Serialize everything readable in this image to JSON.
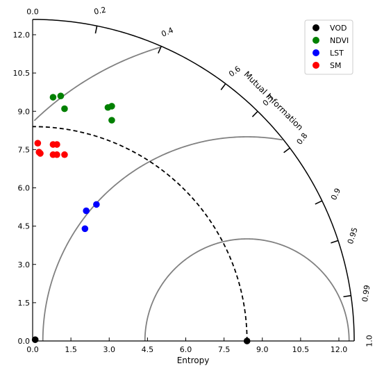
{
  "chart_data": {
    "type": "scatter",
    "subtype": "taylor-style diagram (Mutual Information)",
    "xlabel": "Entropy",
    "arc_label": "Mutual Information",
    "xlim": [
      0,
      12.6
    ],
    "ylim": [
      0,
      12.6
    ],
    "x_ticks": [
      "0.0",
      "1.5",
      "3.0",
      "4.5",
      "6.0",
      "7.5",
      "9.0",
      "10.5",
      "12.0"
    ],
    "y_ticks": [
      "0.0",
      "1.5",
      "3.0",
      "4.5",
      "6.0",
      "7.5",
      "9.0",
      "10.5",
      "12.0"
    ],
    "mi_ticks": [
      "0.0",
      "0.2",
      "0.4",
      "0.6",
      "0.7",
      "0.8",
      "0.9",
      "0.95",
      "0.99",
      "1.0"
    ],
    "reference_radius": 8.4,
    "legend_position": "top-right",
    "series": [
      {
        "name": "VOD",
        "color": "#000000",
        "x": [
          0.1,
          8.4
        ],
        "y": [
          0.05,
          0.0
        ]
      },
      {
        "name": "NDVI",
        "color": "#008000",
        "x": [
          0.8,
          1.1,
          1.25,
          2.95,
          3.1,
          3.1
        ],
        "y": [
          9.55,
          9.6,
          9.1,
          9.15,
          9.2,
          8.65
        ]
      },
      {
        "name": "LST",
        "color": "#0000ff",
        "x": [
          2.1,
          2.5,
          2.05
        ],
        "y": [
          5.1,
          5.35,
          4.4
        ]
      },
      {
        "name": "SM",
        "color": "#ff0000",
        "x": [
          0.2,
          0.25,
          0.3,
          0.8,
          0.95,
          0.8,
          0.95,
          1.25
        ],
        "y": [
          7.75,
          7.4,
          7.35,
          7.7,
          7.7,
          7.3,
          7.3,
          7.3
        ]
      }
    ]
  }
}
